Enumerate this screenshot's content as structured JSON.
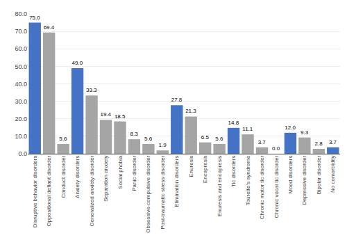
{
  "chart_data": {
    "type": "bar",
    "categories": [
      "Disruptive behavior disorders",
      "Oppositional defiant disorder",
      "Conduct disorder",
      "Anxiety disorders",
      "Generalized anxiety disorder",
      "Separation anxiety",
      "Social phobia",
      "Panic disorder",
      "Obsessive-compulsive disorder",
      "Post-traumatic stress disorder",
      "Elimination disorders",
      "Enuresis",
      "Encopresis",
      "Enuresis and encopresis",
      "Tic disorders",
      "Tourette's syndrome",
      "Chronic motor tic disorder",
      "Chronic vocal tic disorder",
      "Mood disorders",
      "Depressive disorder",
      "Bipolar disorder",
      "No comorbidity"
    ],
    "values": [
      75.0,
      69.4,
      5.6,
      49.0,
      33.3,
      19.4,
      18.5,
      8.3,
      5.6,
      1.9,
      27.8,
      21.3,
      6.5,
      5.6,
      14.8,
      11.1,
      3.7,
      0.0,
      12.0,
      9.3,
      2.8,
      3.7
    ],
    "value_labels": [
      "75.0",
      "69.4",
      "5.6",
      "49.0",
      "33.3",
      "19.4",
      "18.5",
      "8.3",
      "5.6",
      "1.9",
      "27.8",
      "21.3",
      "6.5",
      "5.6",
      "14.8",
      "11.1",
      "3.7",
      "0.0",
      "12.0",
      "9.3",
      "2.8",
      "3.7"
    ],
    "colors": [
      "#4472c4",
      "#a5a5a5",
      "#a5a5a5",
      "#4472c4",
      "#a5a5a5",
      "#a5a5a5",
      "#a5a5a5",
      "#a5a5a5",
      "#a5a5a5",
      "#a5a5a5",
      "#4472c4",
      "#a5a5a5",
      "#a5a5a5",
      "#a5a5a5",
      "#4472c4",
      "#a5a5a5",
      "#a5a5a5",
      "#a5a5a5",
      "#4472c4",
      "#a5a5a5",
      "#a5a5a5",
      "#4472c4"
    ],
    "data_labels": true,
    "ylim": [
      0,
      80
    ],
    "yticks": [
      {
        "value": 0,
        "label": "0.0"
      },
      {
        "value": 10,
        "label": "10.0"
      },
      {
        "value": 20,
        "label": "20.0"
      },
      {
        "value": 30,
        "label": "30.0"
      },
      {
        "value": 40,
        "label": "40.0"
      },
      {
        "value": 50,
        "label": "50.0"
      },
      {
        "value": 60,
        "label": "60.0"
      },
      {
        "value": 70,
        "label": "70.0"
      },
      {
        "value": 80,
        "label": "80.0"
      }
    ],
    "grid": true
  }
}
